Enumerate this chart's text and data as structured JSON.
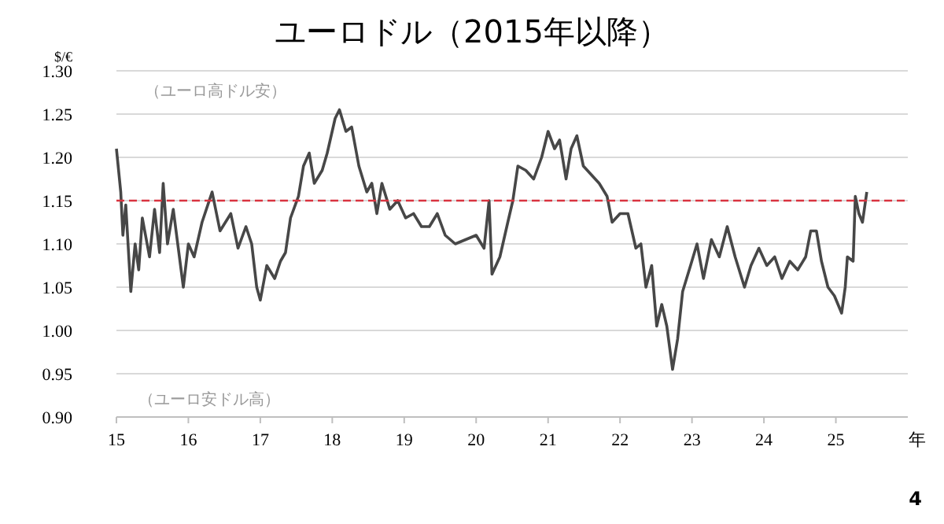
{
  "chart_data": {
    "type": "line",
    "title": "ユーロドル（2015年以降）",
    "xlabel": "年",
    "ylabel": "$/€",
    "x": [
      15.0,
      15.06,
      15.09,
      15.13,
      15.2,
      15.26,
      15.31,
      15.36,
      15.46,
      15.53,
      15.6,
      15.65,
      15.71,
      15.79,
      15.86,
      15.93,
      16.0,
      16.08,
      16.19,
      16.33,
      16.44,
      16.59,
      16.69,
      16.8,
      16.88,
      16.95,
      17.0,
      17.09,
      17.2,
      17.28,
      17.35,
      17.42,
      17.53,
      17.6,
      17.68,
      17.75,
      17.86,
      17.93,
      18.04,
      18.1,
      18.19,
      18.27,
      18.37,
      18.48,
      18.55,
      18.62,
      18.69,
      18.8,
      18.91,
      19.02,
      19.13,
      19.24,
      19.35,
      19.46,
      19.57,
      19.71,
      20.0,
      20.11,
      20.18,
      20.22,
      20.33,
      20.44,
      20.51,
      20.58,
      20.69,
      20.8,
      20.91,
      21.0,
      21.09,
      21.16,
      21.25,
      21.32,
      21.4,
      21.49,
      21.6,
      21.71,
      21.82,
      21.89,
      22.0,
      22.11,
      22.22,
      22.29,
      22.36,
      22.44,
      22.51,
      22.58,
      22.65,
      22.73,
      22.8,
      22.87,
      22.98,
      23.07,
      23.16,
      23.27,
      23.38,
      23.49,
      23.6,
      23.73,
      23.82,
      23.93,
      24.04,
      24.15,
      24.25,
      24.36,
      24.47,
      24.58,
      24.65,
      24.73,
      24.8,
      24.89,
      24.98,
      25.08,
      25.13,
      25.16,
      25.24,
      25.27,
      25.32,
      25.37,
      25.43
    ],
    "series": [
      {
        "color": "#474747",
        "values": [
          1.21,
          1.16,
          1.11,
          1.145,
          1.045,
          1.1,
          1.07,
          1.13,
          1.085,
          1.14,
          1.09,
          1.17,
          1.1,
          1.14,
          1.095,
          1.05,
          1.1,
          1.085,
          1.125,
          1.16,
          1.115,
          1.135,
          1.095,
          1.12,
          1.1,
          1.05,
          1.035,
          1.075,
          1.06,
          1.08,
          1.09,
          1.13,
          1.155,
          1.19,
          1.205,
          1.17,
          1.185,
          1.205,
          1.245,
          1.255,
          1.23,
          1.235,
          1.19,
          1.16,
          1.17,
          1.135,
          1.17,
          1.14,
          1.15,
          1.13,
          1.135,
          1.12,
          1.12,
          1.135,
          1.11,
          1.1,
          1.11,
          1.095,
          1.15,
          1.065,
          1.085,
          1.125,
          1.15,
          1.19,
          1.185,
          1.175,
          1.2,
          1.23,
          1.21,
          1.22,
          1.175,
          1.21,
          1.225,
          1.19,
          1.18,
          1.17,
          1.155,
          1.125,
          1.135,
          1.135,
          1.095,
          1.1,
          1.05,
          1.075,
          1.005,
          1.03,
          1.005,
          0.955,
          0.99,
          1.045,
          1.075,
          1.1,
          1.06,
          1.105,
          1.085,
          1.12,
          1.085,
          1.05,
          1.075,
          1.095,
          1.075,
          1.085,
          1.06,
          1.08,
          1.07,
          1.085,
          1.115,
          1.115,
          1.08,
          1.05,
          1.04,
          1.02,
          1.05,
          1.085,
          1.08,
          1.155,
          1.135,
          1.125,
          1.16
        ]
      }
    ],
    "xlim": [
      15,
      26
    ],
    "xticks": [
      15,
      16,
      17,
      18,
      19,
      20,
      21,
      22,
      23,
      24,
      25
    ],
    "ylim": [
      0.9,
      1.3
    ],
    "yticks": [
      {
        "value": 0.9,
        "label": "0.90"
      },
      {
        "value": 0.95,
        "label": "0.95"
      },
      {
        "value": 1.0,
        "label": "1.00"
      },
      {
        "value": 1.05,
        "label": "1.05"
      },
      {
        "value": 1.1,
        "label": "1.10"
      },
      {
        "value": 1.15,
        "label": "1.15"
      },
      {
        "value": 1.2,
        "label": "1.20"
      },
      {
        "value": 1.25,
        "label": "1.25"
      },
      {
        "value": 1.3,
        "label": "1.30"
      }
    ],
    "grid": "y",
    "marker": "none",
    "line_style": "solid",
    "ref_lines": [
      {
        "axis": "y",
        "value": 1.15,
        "color": "#d9333f",
        "line_style": "dashed"
      }
    ],
    "annotations": [
      "（ユーロ高ドル安）",
      "（ユーロ安ドル高）",
      "4"
    ]
  }
}
